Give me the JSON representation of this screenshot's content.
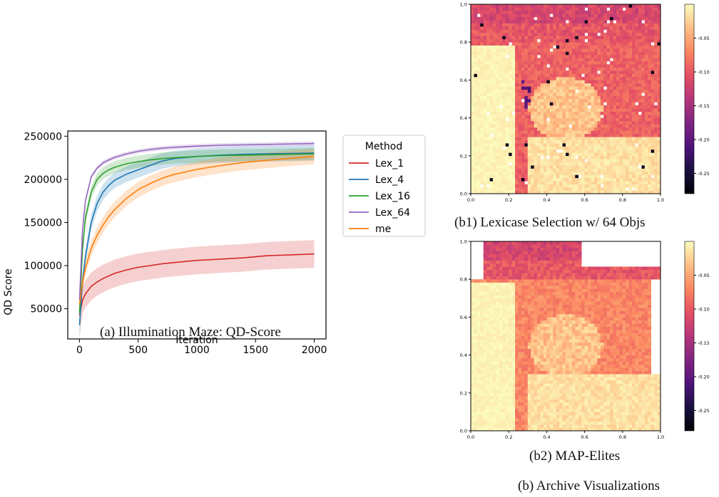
{
  "chart_data": [
    {
      "type": "line",
      "title": "",
      "xlabel": "Iteration",
      "ylabel": "QD Score",
      "xlim": [
        -100,
        2100
      ],
      "ylim": [
        15000,
        256000
      ],
      "xticks": [
        "0",
        "500",
        "1000",
        "1500",
        "2000"
      ],
      "yticks": [
        "50000",
        "100000",
        "150000",
        "200000",
        "250000"
      ],
      "legend_title": "Method",
      "legend_position": "outside-right",
      "x": [
        0,
        25,
        50,
        100,
        150,
        200,
        250,
        300,
        400,
        500,
        600,
        700,
        800,
        1000,
        1200,
        1400,
        1600,
        1800,
        2000
      ],
      "series": [
        {
          "name": "Lex_1",
          "color": "#d62728",
          "band": 16000,
          "values": [
            42000,
            60000,
            67000,
            76000,
            81000,
            85000,
            88000,
            91000,
            95000,
            98000,
            100000,
            102000,
            103500,
            106000,
            107500,
            109000,
            111500,
            112500,
            113500
          ]
        },
        {
          "name": "Lex_4",
          "color": "#1f77b4",
          "band": 9000,
          "values": [
            31000,
            80000,
            110000,
            150000,
            172000,
            185000,
            193000,
            199000,
            206000,
            211000,
            216000,
            221000,
            224000,
            226500,
            228000,
            229000,
            229500,
            230000,
            230500
          ]
        },
        {
          "name": "Lex_16",
          "color": "#2ca02c",
          "band": 7000,
          "values": [
            45000,
            118000,
            155000,
            185000,
            200000,
            207000,
            211000,
            214000,
            218000,
            220500,
            222500,
            224000,
            225000,
            226500,
            227500,
            228000,
            228500,
            229000,
            229500
          ]
        },
        {
          "name": "Lex_64",
          "color": "#9467bd",
          "band": 2500,
          "values": [
            60000,
            140000,
            175000,
            203000,
            213000,
            219000,
            222500,
            225500,
            229500,
            232500,
            234500,
            236000,
            237000,
            238500,
            239500,
            240000,
            240500,
            241000,
            241500
          ]
        },
        {
          "name": "me",
          "color": "#ff7f0e",
          "band": 9000,
          "values": [
            55000,
            80000,
            97000,
            120000,
            135000,
            147000,
            157000,
            165000,
            178000,
            188000,
            195000,
            201000,
            205500,
            211500,
            216000,
            219500,
            222000,
            224500,
            226500
          ]
        }
      ]
    },
    {
      "type": "heatmap",
      "title": "",
      "xlim": [
        0,
        1
      ],
      "ylim": [
        0,
        1
      ],
      "xticks": [
        "0.0",
        "0.2",
        "0.4",
        "0.6",
        "0.8",
        "1.0"
      ],
      "yticks": [
        "0.0",
        "0.2",
        "0.4",
        "0.6",
        "0.8",
        "1.0"
      ],
      "colorbar_ticks": [
        "-0.05",
        "-0.10",
        "-0.15",
        "-0.20",
        "-0.25"
      ],
      "colormap": "magma",
      "value_range": [
        -0.28,
        0.0
      ]
    },
    {
      "type": "heatmap",
      "title": "",
      "xlim": [
        0,
        1
      ],
      "ylim": [
        0,
        1
      ],
      "xticks": [
        "0.0",
        "0.2",
        "0.4",
        "0.6",
        "0.8",
        "1.0"
      ],
      "yticks": [
        "0.0",
        "0.2",
        "0.4",
        "0.6",
        "0.8",
        "1.0"
      ],
      "colorbar_ticks": [
        "-0.05",
        "-0.10",
        "-0.15",
        "-0.20",
        "-0.25"
      ],
      "colormap": "magma",
      "value_range": [
        -0.28,
        0.0
      ]
    }
  ],
  "captions": {
    "a": "(a) Illumination Maze: QD-Score",
    "b1": "(b1) Lexicase Selection w/ 64 Objs",
    "b2": "(b2) MAP-Elites",
    "b": "(b) Archive Visualizations"
  }
}
